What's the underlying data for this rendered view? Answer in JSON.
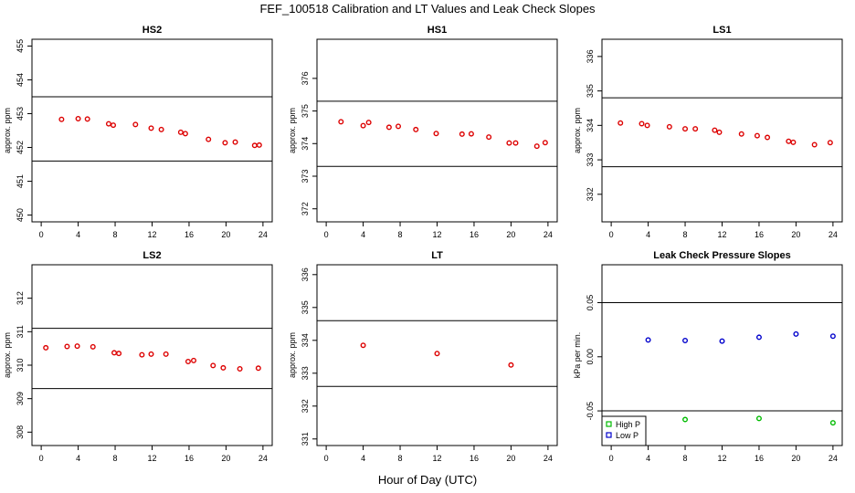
{
  "figure": {
    "title": "FEF_100518  Calibration and LT Values and Leak Check Slopes",
    "xlabel": "Hour of Day (UTC)"
  },
  "colors": {
    "cal_points": "#dd0000",
    "high_p": "#00bb00",
    "low_p": "#0000cc",
    "axes": "#000000"
  },
  "chart_data": [
    {
      "type": "scatter",
      "title": "HS2",
      "xlabel": "Hour of Day (UTC)",
      "ylabel": "approx. ppm",
      "xlim": [
        -1,
        25
      ],
      "ylim": [
        449.8,
        455.2
      ],
      "xticks": [
        0,
        4,
        8,
        12,
        16,
        20,
        24
      ],
      "yticks": [
        450,
        451,
        452,
        453,
        454,
        455
      ],
      "hlines": [
        453.5,
        451.6
      ],
      "series": [
        {
          "color": "#dd0000",
          "x": [
            2.2,
            4.0,
            5.0,
            7.3,
            7.8,
            10.2,
            11.9,
            13.0,
            15.1,
            15.6,
            18.1,
            19.9,
            21.0,
            23.1,
            23.6
          ],
          "y": [
            452.83,
            452.85,
            452.84,
            452.7,
            452.66,
            452.68,
            452.57,
            452.53,
            452.45,
            452.41,
            452.24,
            452.14,
            452.16,
            452.06,
            452.07
          ]
        }
      ],
      "grid": false,
      "legend": false
    },
    {
      "type": "scatter",
      "title": "HS1",
      "xlabel": "Hour of Day (UTC)",
      "ylabel": "approx. ppm",
      "xlim": [
        -1,
        25
      ],
      "ylim": [
        371.6,
        377.2
      ],
      "xticks": [
        0,
        4,
        8,
        12,
        16,
        20,
        24
      ],
      "yticks": [
        372,
        373,
        374,
        375,
        376
      ],
      "hlines": [
        375.3,
        373.3
      ],
      "series": [
        {
          "color": "#dd0000",
          "x": [
            1.6,
            4.0,
            4.6,
            6.8,
            7.8,
            9.7,
            11.9,
            14.7,
            15.7,
            17.6,
            19.8,
            20.5,
            22.8,
            23.7
          ],
          "y": [
            374.67,
            374.55,
            374.65,
            374.5,
            374.53,
            374.43,
            374.31,
            374.29,
            374.3,
            374.2,
            374.02,
            374.02,
            373.92,
            374.03
          ]
        }
      ],
      "grid": false,
      "legend": false
    },
    {
      "type": "scatter",
      "title": "LS1",
      "xlabel": "Hour of Day (UTC)",
      "ylabel": "approx. ppm",
      "xlim": [
        -1,
        25
      ],
      "ylim": [
        331.2,
        336.5
      ],
      "xticks": [
        0,
        4,
        8,
        12,
        16,
        20,
        24
      ],
      "yticks": [
        332,
        333,
        334,
        335,
        336
      ],
      "hlines": [
        334.8,
        332.8
      ],
      "series": [
        {
          "color": "#dd0000",
          "x": [
            1.0,
            3.3,
            3.9,
            6.3,
            8.0,
            9.1,
            11.2,
            11.7,
            14.1,
            15.8,
            16.9,
            19.2,
            19.7,
            22.0,
            23.7
          ],
          "y": [
            334.07,
            334.05,
            334.0,
            333.96,
            333.9,
            333.9,
            333.86,
            333.8,
            333.75,
            333.7,
            333.65,
            333.54,
            333.51,
            333.44,
            333.5
          ]
        }
      ],
      "grid": false,
      "legend": false
    },
    {
      "type": "scatter",
      "title": "LS2",
      "xlabel": "Hour of Day (UTC)",
      "ylabel": "approx. ppm",
      "xlim": [
        -1,
        25
      ],
      "ylim": [
        307.6,
        313.0
      ],
      "xticks": [
        0,
        4,
        8,
        12,
        16,
        20,
        24
      ],
      "yticks": [
        308,
        309,
        310,
        311,
        312
      ],
      "hlines": [
        311.1,
        309.3
      ],
      "series": [
        {
          "color": "#dd0000",
          "x": [
            0.5,
            2.8,
            3.9,
            5.6,
            7.9,
            8.4,
            10.9,
            11.9,
            13.5,
            15.9,
            16.5,
            18.6,
            19.7,
            21.5,
            23.5
          ],
          "y": [
            310.52,
            310.56,
            310.57,
            310.55,
            310.37,
            310.35,
            310.31,
            310.33,
            310.33,
            310.11,
            310.14,
            309.99,
            309.92,
            309.89,
            309.91
          ]
        }
      ],
      "grid": false,
      "legend": false
    },
    {
      "type": "scatter",
      "title": "LT",
      "xlabel": "Hour of Day (UTC)",
      "ylabel": "approx. ppm",
      "xlim": [
        -1,
        25
      ],
      "ylim": [
        330.8,
        336.3
      ],
      "xticks": [
        0,
        4,
        8,
        12,
        16,
        20,
        24
      ],
      "yticks": [
        331,
        332,
        333,
        334,
        335,
        336
      ],
      "hlines": [
        334.6,
        332.6
      ],
      "series": [
        {
          "color": "#dd0000",
          "x": [
            4.0,
            12.0,
            20.0
          ],
          "y": [
            333.85,
            333.6,
            333.25
          ]
        }
      ],
      "grid": false,
      "legend": false
    },
    {
      "type": "scatter",
      "title": "Leak Check Pressure Slopes",
      "xlabel": "Hour of Day (UTC)",
      "ylabel": "kPa per min.",
      "xlim": [
        -1,
        25
      ],
      "ylim": [
        -0.082,
        0.085
      ],
      "xticks": [
        0,
        4,
        8,
        12,
        16,
        20,
        24
      ],
      "yticks": [
        -0.05,
        0.0,
        0.05
      ],
      "ytick_labels": [
        "-0.05",
        "0.00",
        "0.05"
      ],
      "hlines": [
        0.05,
        -0.05
      ],
      "series": [
        {
          "name": "High P",
          "color": "#00bb00",
          "x": [
            8.0,
            16.0,
            24.0
          ],
          "y": [
            -0.058,
            -0.057,
            -0.061
          ]
        },
        {
          "name": "Low P",
          "color": "#0000cc",
          "x": [
            4.0,
            8.0,
            12.0,
            16.0,
            20.0,
            24.0
          ],
          "y": [
            0.0155,
            0.015,
            0.0145,
            0.018,
            0.021,
            0.019
          ]
        }
      ],
      "grid": false,
      "legend": "bottom-left"
    }
  ]
}
